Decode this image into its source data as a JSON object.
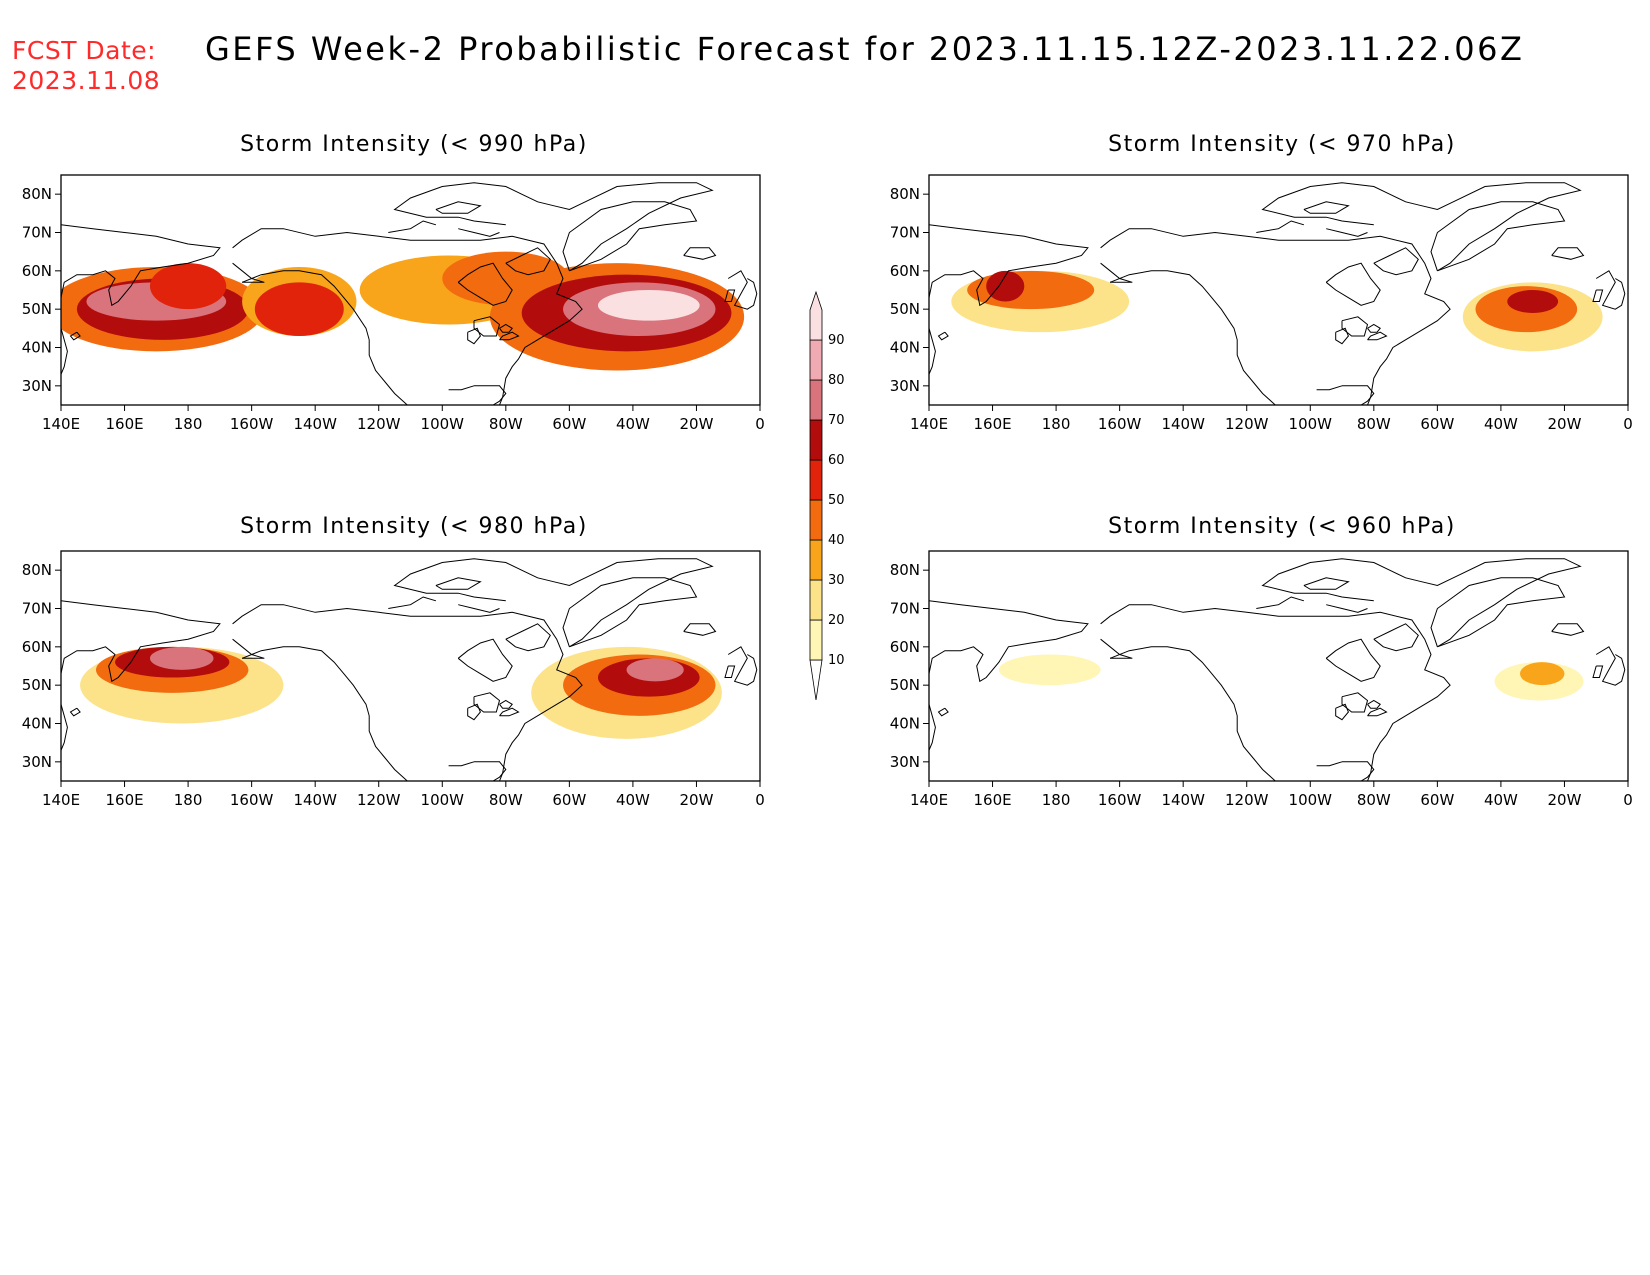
{
  "header": {
    "fcst_label": "FCST Date:",
    "fcst_date": "2023.11.08",
    "title": "GEFS Week-2 Probabilistic Forecast for 2023.11.15.12Z-2023.11.22.06Z"
  },
  "colors": {
    "title_red": "#ff2a2a",
    "levels": [
      "#fff5b4",
      "#fce38a",
      "#f9a51b",
      "#f26b0f",
      "#e0230a",
      "#b20c0c",
      "#d9737c",
      "#f0aab1",
      "#fbe0e2"
    ]
  },
  "colorbar": {
    "labels": [
      "10",
      "20",
      "30",
      "40",
      "50",
      "60",
      "70",
      "80",
      "90"
    ]
  },
  "axes": {
    "lon_labels": [
      "140E",
      "160E",
      "180",
      "160W",
      "140W",
      "120W",
      "100W",
      "80W",
      "60W",
      "40W",
      "20W",
      "0"
    ],
    "lat_labels": [
      "30N",
      "40N",
      "50N",
      "60N",
      "70N",
      "80N"
    ]
  },
  "panels": [
    {
      "id": "p990",
      "title": "Storm Intensity (< 990 hPa)",
      "blobs": [
        {
          "lon": 170,
          "lat": 50,
          "rx": 34,
          "ry": 11,
          "level": 3
        },
        {
          "lon": 172,
          "lat": 50,
          "rx": 27,
          "ry": 8,
          "level": 5
        },
        {
          "lon": 170,
          "lat": 52,
          "rx": 22,
          "ry": 5,
          "level": 6
        },
        {
          "lon": 180,
          "lat": 56,
          "rx": 12,
          "ry": 6,
          "level": 4
        },
        {
          "lon": 215,
          "lat": 52,
          "rx": 18,
          "ry": 9,
          "level": 2
        },
        {
          "lon": 215,
          "lat": 50,
          "rx": 14,
          "ry": 7,
          "level": 4
        },
        {
          "lon": 262,
          "lat": 55,
          "rx": 28,
          "ry": 9,
          "level": 2
        },
        {
          "lon": 280,
          "lat": 58,
          "rx": 20,
          "ry": 7,
          "level": 3
        },
        {
          "lon": 315,
          "lat": 48,
          "rx": 40,
          "ry": 14,
          "level": 3
        },
        {
          "lon": 318,
          "lat": 49,
          "rx": 33,
          "ry": 10,
          "level": 5
        },
        {
          "lon": 322,
          "lat": 50,
          "rx": 24,
          "ry": 7,
          "level": 6
        },
        {
          "lon": 325,
          "lat": 51,
          "rx": 16,
          "ry": 4,
          "level": 8
        }
      ]
    },
    {
      "id": "p970",
      "title": "Storm Intensity (< 970 hPa)",
      "blobs": [
        {
          "lon": 175,
          "lat": 52,
          "rx": 28,
          "ry": 8,
          "level": 1
        },
        {
          "lon": 172,
          "lat": 55,
          "rx": 20,
          "ry": 5,
          "level": 3
        },
        {
          "lon": 164,
          "lat": 56,
          "rx": 6,
          "ry": 4,
          "level": 5
        },
        {
          "lon": 330,
          "lat": 48,
          "rx": 22,
          "ry": 9,
          "level": 1
        },
        {
          "lon": 328,
          "lat": 50,
          "rx": 16,
          "ry": 6,
          "level": 3
        },
        {
          "lon": 330,
          "lat": 52,
          "rx": 8,
          "ry": 3,
          "level": 5
        }
      ]
    },
    {
      "id": "p980",
      "title": "Storm Intensity (< 980 hPa)",
      "blobs": [
        {
          "lon": 178,
          "lat": 50,
          "rx": 32,
          "ry": 10,
          "level": 1
        },
        {
          "lon": 175,
          "lat": 54,
          "rx": 24,
          "ry": 6,
          "level": 3
        },
        {
          "lon": 175,
          "lat": 56,
          "rx": 18,
          "ry": 4,
          "level": 5
        },
        {
          "lon": 178,
          "lat": 57,
          "rx": 10,
          "ry": 3,
          "level": 6
        },
        {
          "lon": 318,
          "lat": 48,
          "rx": 30,
          "ry": 12,
          "level": 1
        },
        {
          "lon": 322,
          "lat": 50,
          "rx": 24,
          "ry": 8,
          "level": 3
        },
        {
          "lon": 325,
          "lat": 52,
          "rx": 16,
          "ry": 5,
          "level": 5
        },
        {
          "lon": 327,
          "lat": 54,
          "rx": 9,
          "ry": 3,
          "level": 6
        }
      ]
    },
    {
      "id": "p960",
      "title": "Storm Intensity (< 960 hPa)",
      "blobs": [
        {
          "lon": 178,
          "lat": 54,
          "rx": 16,
          "ry": 4,
          "level": 0
        },
        {
          "lon": 332,
          "lat": 51,
          "rx": 14,
          "ry": 5,
          "level": 0
        },
        {
          "lon": 333,
          "lat": 53,
          "rx": 7,
          "ry": 3,
          "level": 2
        }
      ]
    }
  ]
}
